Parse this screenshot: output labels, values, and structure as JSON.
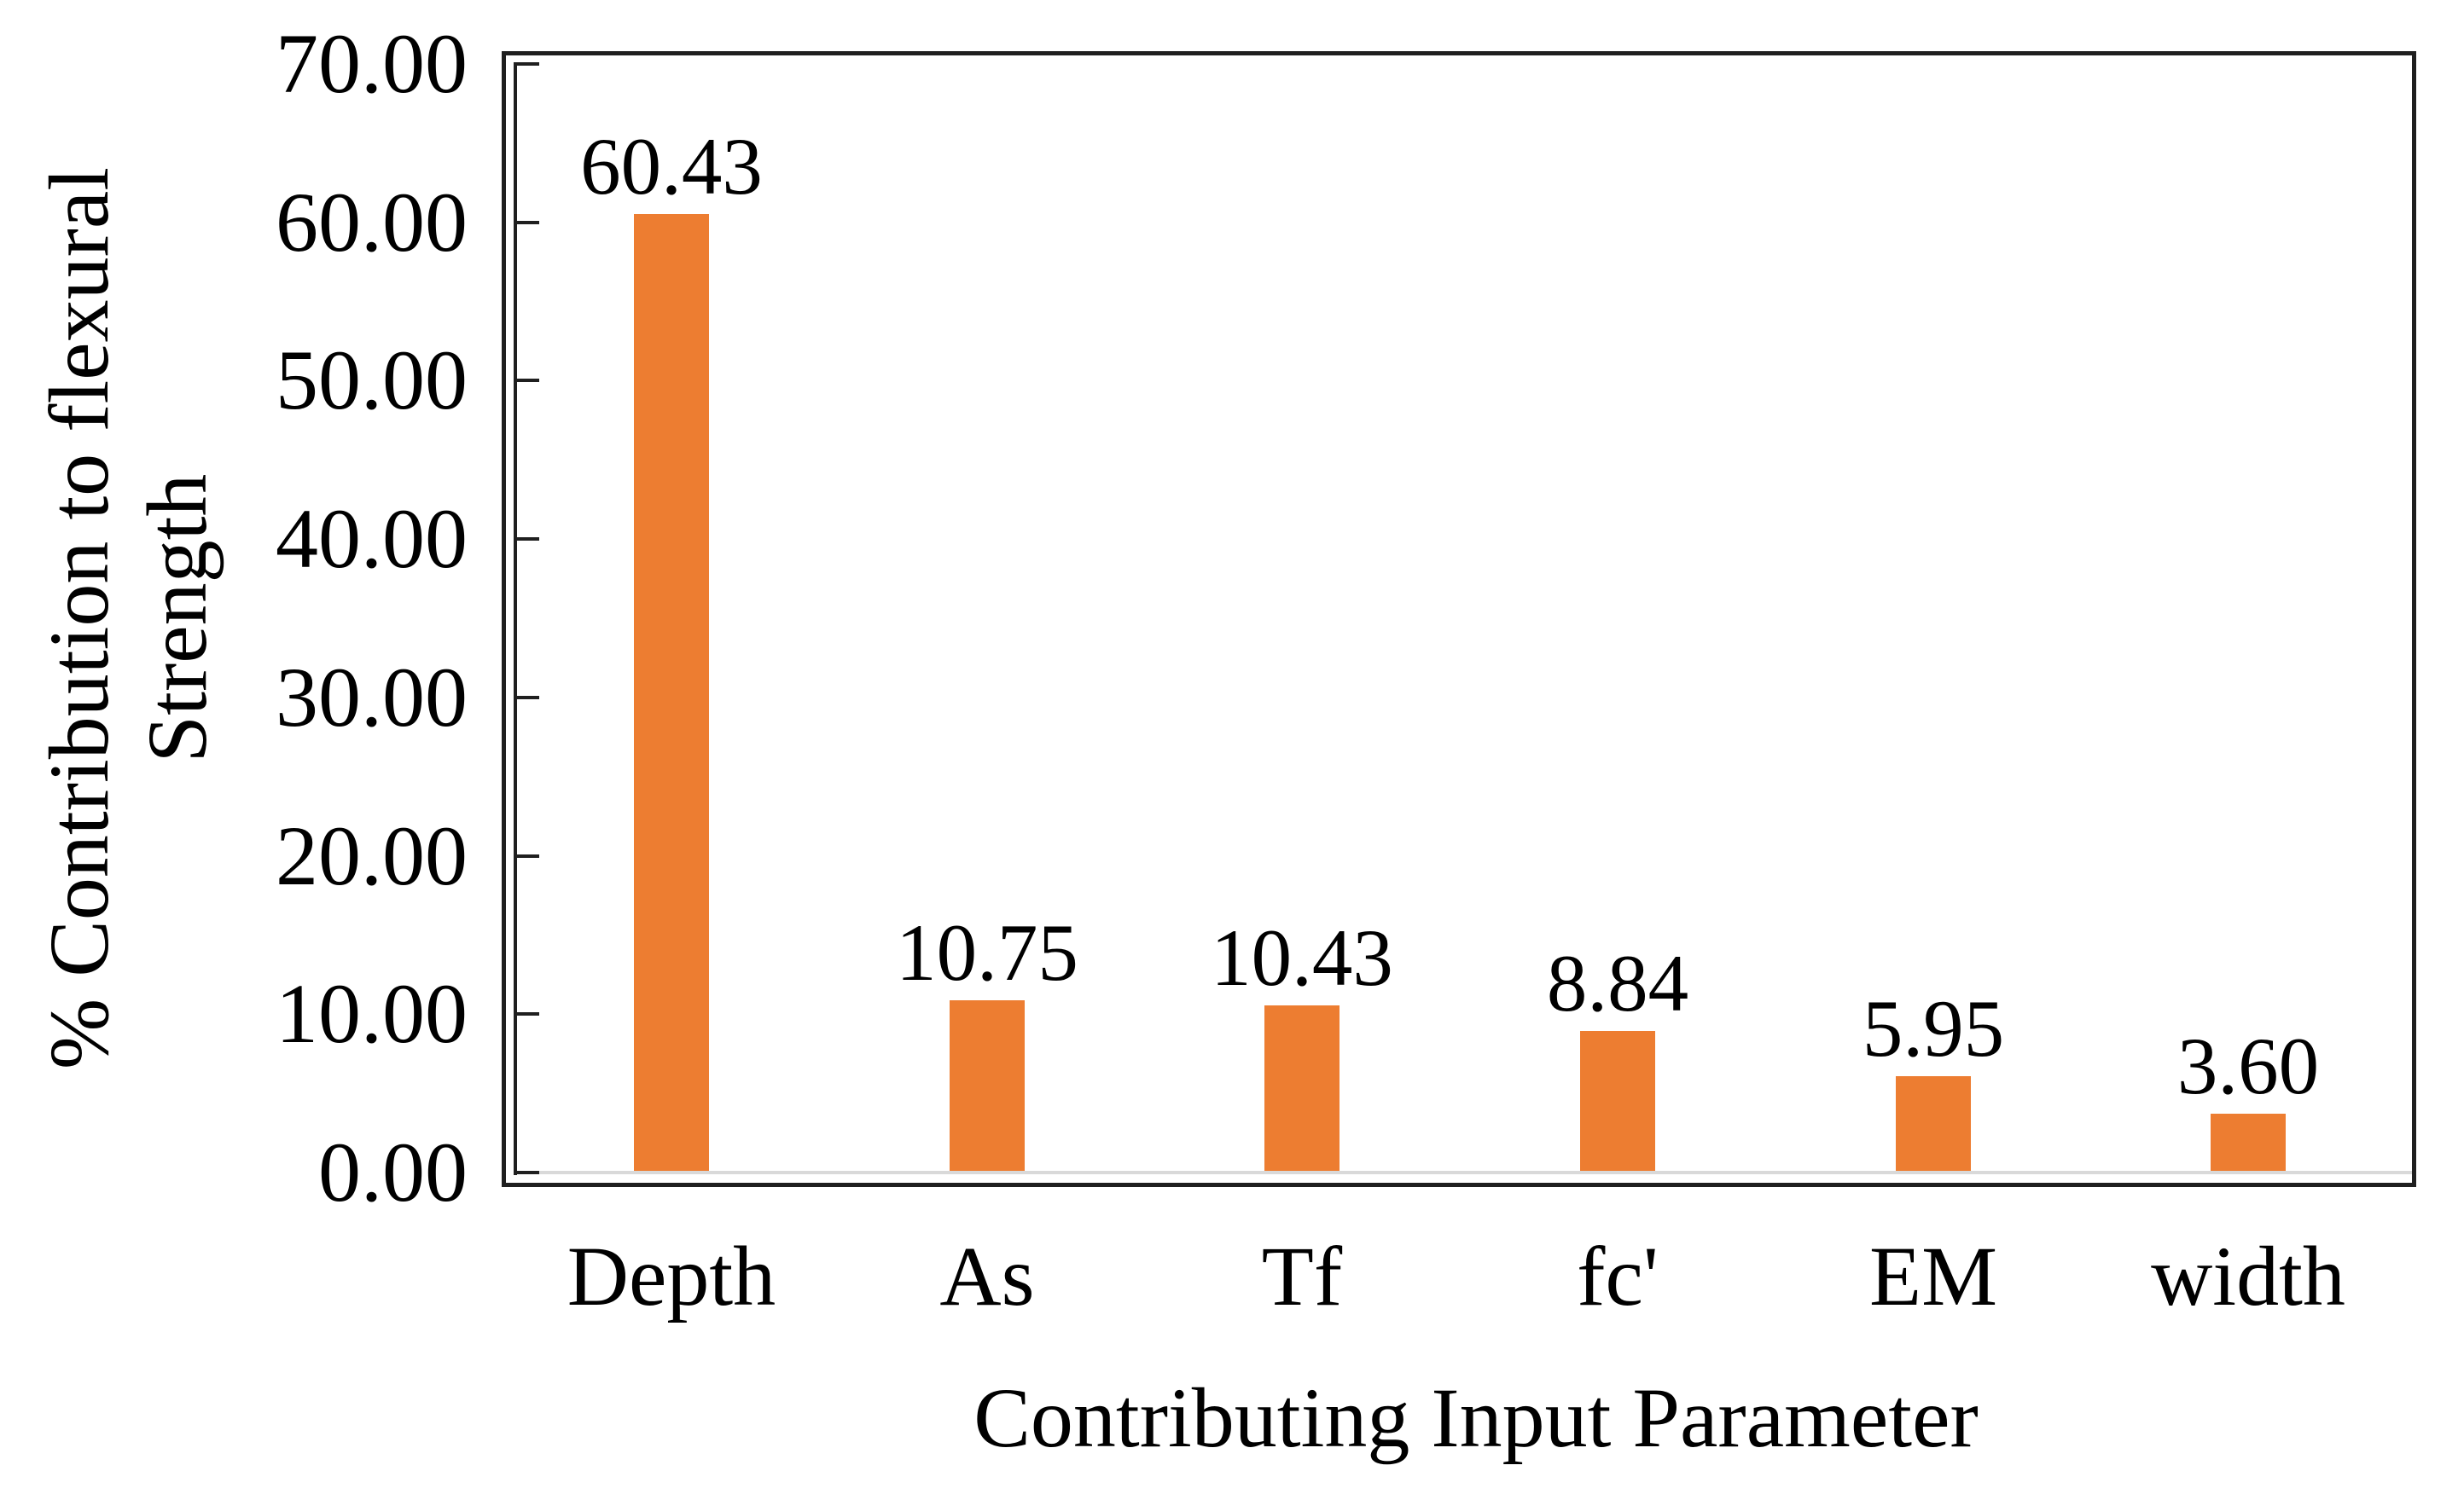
{
  "chart_data": {
    "type": "bar",
    "title": "",
    "xlabel": "Contributing Input Parameter",
    "ylabel": "% Contribution to flexural Strength",
    "ylabel_lines": [
      "% Contribution to flexural",
      "Strength"
    ],
    "categories": [
      "Depth",
      "As",
      "Tf",
      "fc'",
      "EM",
      "width"
    ],
    "values": [
      60.43,
      10.75,
      10.43,
      8.84,
      5.95,
      3.6
    ],
    "value_labels": [
      "60.43",
      "10.75",
      "10.43",
      "8.84",
      "5.95",
      "3.60"
    ],
    "ylim": [
      0,
      70
    ],
    "ytick_step": 10,
    "ytick_labels": [
      "0.00",
      "10.00",
      "20.00",
      "30.00",
      "40.00",
      "50.00",
      "60.00",
      "70.00"
    ],
    "grid": false,
    "legend": null,
    "bar_color": "#ED7D31",
    "axis_line_color": "#1f1f1f",
    "baseline_color": "#d9d9d9",
    "border_color": "#1f1f1f"
  }
}
